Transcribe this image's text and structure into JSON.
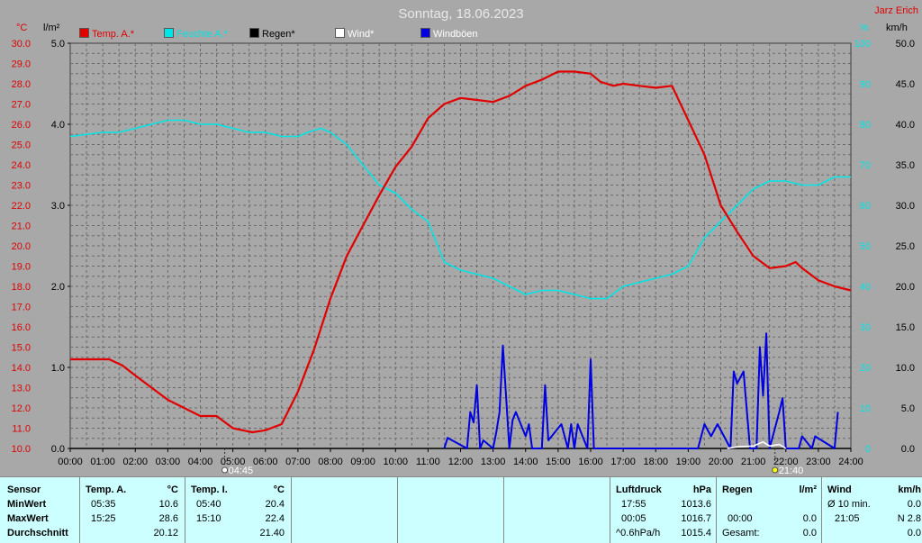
{
  "header": {
    "title": "Sonntag, 18.06.2023",
    "brand": "Jarz Erich"
  },
  "units": {
    "left1": "°C",
    "left2": "l/m²",
    "right1": "%",
    "right2": "km/h"
  },
  "legend": [
    {
      "label": "Temp. A.*",
      "color": "#e00000"
    },
    {
      "label": "Feuchte A.*",
      "color": "#00e5e5"
    },
    {
      "label": "Regen*",
      "color": "#000000"
    },
    {
      "label": "Wind*",
      "color": "#ffffff"
    },
    {
      "label": "Windböen",
      "color": "#0000e0"
    }
  ],
  "markers": {
    "sunrise": "04:45",
    "sunset": "21:40"
  },
  "chart_data": {
    "type": "line",
    "title": "Sonntag, 18.06.2023",
    "x_unit": "hour of day",
    "xlim": [
      0,
      24
    ],
    "x_ticks": [
      "00:00",
      "01:00",
      "02:00",
      "03:00",
      "04:00",
      "05:00",
      "06:00",
      "07:00",
      "08:00",
      "09:00",
      "10:00",
      "11:00",
      "12:00",
      "13:00",
      "14:00",
      "15:00",
      "16:00",
      "17:00",
      "18:00",
      "19:00",
      "20:00",
      "21:00",
      "22:00",
      "23:00",
      "24:00"
    ],
    "axes": {
      "temp": {
        "label": "°C",
        "lim": [
          10,
          30
        ],
        "ticks": [
          "30.0",
          "29.0",
          "28.0",
          "27.0",
          "26.0",
          "25.0",
          "24.0",
          "23.0",
          "22.0",
          "21.0",
          "20.0",
          "19.0",
          "18.0",
          "17.0",
          "16.0",
          "15.0",
          "14.0",
          "13.0",
          "12.0",
          "11.0",
          "10.0"
        ]
      },
      "rain": {
        "label": "l/m²",
        "lim": [
          0,
          5
        ],
        "ticks": [
          "5.0",
          "4.0",
          "3.0",
          "2.0",
          "1.0",
          "0.0"
        ]
      },
      "humidity": {
        "label": "%",
        "lim": [
          0,
          100
        ],
        "ticks": [
          "100",
          "90",
          "80",
          "70",
          "60",
          "50",
          "40",
          "30",
          "20",
          "10",
          "0"
        ]
      },
      "wind": {
        "label": "km/h",
        "lim": [
          0,
          50
        ],
        "ticks": [
          "50.0",
          "45.0",
          "40.0",
          "35.0",
          "30.0",
          "25.0",
          "20.0",
          "15.0",
          "10.0",
          "5.0",
          "0.0"
        ]
      }
    },
    "series": [
      {
        "name": "Temp. A.*",
        "axis": "temp",
        "color": "#e00000",
        "x": [
          0,
          1.2,
          1.6,
          2,
          2.5,
          3,
          3.5,
          4,
          4.5,
          5,
          5.3,
          5.6,
          6,
          6.5,
          7,
          7.5,
          8,
          8.5,
          9,
          9.5,
          10,
          10.5,
          11,
          11.5,
          12,
          12.5,
          13,
          13.5,
          14,
          14.5,
          15,
          15.5,
          16,
          16.3,
          16.7,
          17,
          17.5,
          18,
          18.5,
          19,
          19.5,
          20,
          20.5,
          21,
          21.5,
          22,
          22.3,
          22.5,
          23,
          23.5,
          24
        ],
        "y": [
          14.4,
          14.4,
          14.1,
          13.6,
          13,
          12.4,
          12.0,
          11.6,
          11.6,
          11.0,
          10.9,
          10.8,
          10.9,
          11.2,
          12.8,
          14.9,
          17.4,
          19.5,
          21.0,
          22.5,
          23.9,
          24.9,
          26.3,
          27.0,
          27.3,
          27.2,
          27.1,
          27.4,
          27.9,
          28.2,
          28.6,
          28.6,
          28.5,
          28.1,
          27.9,
          28.0,
          27.9,
          27.8,
          27.9,
          26.2,
          24.5,
          22.0,
          20.7,
          19.5,
          18.9,
          19.0,
          19.2,
          18.9,
          18.3,
          18.0,
          17.8
        ]
      },
      {
        "name": "Feuchte A.*",
        "axis": "humidity",
        "color": "#00e5e5",
        "x": [
          0,
          1,
          1.5,
          2,
          2.5,
          3,
          3.5,
          4,
          4.5,
          5,
          5.5,
          6,
          6.5,
          7,
          7.3,
          7.7,
          8,
          8.5,
          9,
          9.5,
          10,
          10.5,
          11,
          11.5,
          12,
          12.5,
          13,
          13.5,
          14,
          14.5,
          15,
          15.5,
          16,
          16.5,
          17,
          17.5,
          18,
          18.5,
          19,
          19.5,
          20,
          20.5,
          21,
          21.5,
          22,
          22.5,
          23,
          23.5,
          24
        ],
        "y": [
          77,
          78,
          78,
          79,
          80,
          81,
          81,
          80,
          80,
          79,
          78,
          78,
          77,
          77,
          78,
          79,
          78,
          75,
          70,
          65,
          63,
          59,
          56,
          46,
          44,
          43,
          42,
          40,
          38,
          39,
          39,
          38,
          37,
          37,
          40,
          41,
          42,
          43,
          45,
          52,
          56,
          60,
          64,
          66,
          66,
          65,
          65,
          67,
          67
        ]
      },
      {
        "name": "Windböen",
        "axis": "wind",
        "color": "#0000e0",
        "x": [
          11.5,
          11.6,
          12.2,
          12.3,
          12.4,
          12.5,
          12.6,
          12.7,
          13,
          13.1,
          13.2,
          13.3,
          13.5,
          13.6,
          13.7,
          14,
          14.1,
          14.2,
          14.5,
          14.6,
          14.7,
          15.1,
          15.3,
          15.4,
          15.5,
          15.6,
          15.9,
          16,
          16.1,
          19.3,
          19.4,
          19.5,
          19.7,
          19.9,
          20.3,
          20.4,
          20.5,
          20.7,
          20.9,
          21.1,
          21.2,
          21.3,
          21.4,
          21.5,
          21.8,
          21.9,
          22,
          22.4,
          22.5,
          22.8,
          22.9,
          23.5,
          23.6
        ],
        "y": [
          0,
          1.3,
          0,
          4.5,
          3.2,
          7.8,
          0,
          1,
          0,
          2,
          4.5,
          12.7,
          0,
          3.5,
          4.5,
          1.5,
          3,
          0,
          0,
          7.8,
          1,
          3,
          0,
          3,
          0,
          3,
          0,
          11,
          0,
          0,
          1.5,
          3,
          1.5,
          3,
          0,
          9.5,
          8,
          9.5,
          0,
          0,
          12.5,
          6.5,
          14.2,
          0,
          4.5,
          6.2,
          0,
          0,
          1.5,
          0,
          1.5,
          0,
          4.5
        ]
      },
      {
        "name": "Wind*",
        "axis": "wind",
        "color": "#ffffff",
        "x": [
          20.2,
          20.5,
          21,
          21.3,
          21.5,
          21.8,
          22
        ],
        "y": [
          0,
          0.2,
          0.3,
          0.8,
          0.3,
          0.5,
          0
        ]
      },
      {
        "name": "Regen*",
        "axis": "rain",
        "color": "#000000",
        "x": [
          0,
          24
        ],
        "y": [
          0,
          0
        ]
      }
    ]
  },
  "table": {
    "sensor": {
      "header": "Sensor",
      "rows": [
        "MinWert",
        "MaxWert",
        "Durchschnitt"
      ]
    },
    "temp_a": {
      "header": "Temp. A.",
      "unit": "°C",
      "rows": [
        {
          "time": "05:35",
          "value": "10.6"
        },
        {
          "time": "15:25",
          "value": "28.6"
        },
        {
          "time": "",
          "value": "20.12"
        }
      ]
    },
    "temp_i": {
      "header": "Temp. I.",
      "unit": "°C",
      "rows": [
        {
          "time": "05:40",
          "value": "20.4"
        },
        {
          "time": "15:10",
          "value": "22.4"
        },
        {
          "time": "",
          "value": "21.40"
        }
      ]
    },
    "luftdruck": {
      "header": "Luftdruck",
      "unit": "hPa",
      "rows": [
        {
          "time": "17:55",
          "value": "1013.6"
        },
        {
          "time": "00:05",
          "value": "1016.7"
        },
        {
          "time": "^0.6hPa/h",
          "value": "1015.4"
        }
      ]
    },
    "regen": {
      "header": "Regen",
      "unit": "l/m²",
      "rows": [
        {
          "time": "",
          "value": ""
        },
        {
          "time": "00:00",
          "value": "0.0"
        },
        {
          "time": "Gesamt:",
          "value": "0.0"
        }
      ]
    },
    "wind": {
      "header": "Wind",
      "unit": "km/h",
      "rows": [
        {
          "time": "Ø 10 min.",
          "value": "0.0"
        },
        {
          "time": "21:05",
          "value": "N 2.8"
        },
        {
          "time": "",
          "value": "0.0"
        }
      ]
    }
  }
}
